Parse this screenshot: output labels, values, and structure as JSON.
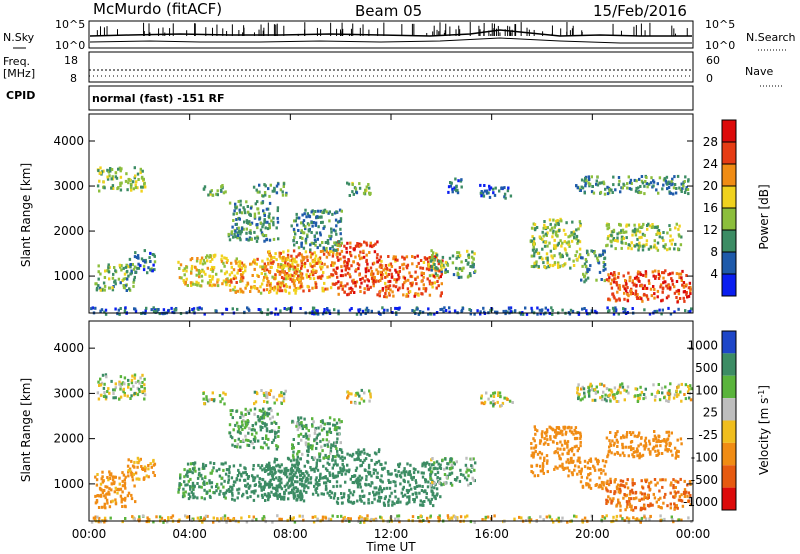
{
  "header": {
    "station": "McMurdo (fitACF)",
    "beam": "Beam 05",
    "date": "15/Feb/2016"
  },
  "top_panel_labels": {
    "nsky": "N.Sky",
    "nsky_ticks": [
      "10^5",
      "10^0"
    ],
    "nsearch": "N.Search",
    "nsearch_ticks": [
      "10^5",
      "10^0"
    ],
    "freq": "Freq.",
    "freq_unit": "[MHz]",
    "freq_ticks": [
      "18",
      "8"
    ],
    "nave": "Nave",
    "nave_ticks": [
      "60",
      "0"
    ],
    "cpid": "CPID",
    "cpid_value": "normal (fast) -151 RF"
  },
  "chart_data": [
    {
      "type": "heatmap",
      "parameter": "power",
      "ylabel": "Slant Range [km]",
      "xlabel": "",
      "ylim": [
        180,
        4600
      ],
      "yticks": [
        1000,
        2000,
        3000,
        4000
      ],
      "xticks": [
        "00:00",
        "04:00",
        "08:00",
        "12:00",
        "16:00",
        "20:00",
        "00:00"
      ],
      "colorbar": {
        "label": "Power [dB]",
        "range": [
          0,
          32
        ],
        "ticks": [
          4,
          8,
          12,
          16,
          20,
          24,
          28
        ],
        "colors": [
          "#0a1ef0",
          "#1e5aaa",
          "#3c8c64",
          "#8cbe3c",
          "#f0d21e",
          "#f08c14",
          "#e63c14",
          "#dc0a0a"
        ]
      },
      "regions": [
        {
          "t": [
            0.3,
            2.2
          ],
          "r": [
            2900,
            3450
          ],
          "v": 14
        },
        {
          "t": [
            4.5,
            5.4
          ],
          "r": [
            2800,
            3050
          ],
          "v": 12
        },
        {
          "t": [
            6.5,
            7.8
          ],
          "r": [
            2800,
            3100
          ],
          "v": 10
        },
        {
          "t": [
            10.2,
            11.2
          ],
          "r": [
            2800,
            3100
          ],
          "v": 12
        },
        {
          "t": [
            14.2,
            14.8
          ],
          "r": [
            2850,
            3200
          ],
          "v": 8
        },
        {
          "t": [
            15.5,
            16.8
          ],
          "r": [
            2750,
            3050
          ],
          "v": 6
        },
        {
          "t": [
            19.3,
            23.9
          ],
          "r": [
            2850,
            3250
          ],
          "v": 10
        },
        {
          "t": [
            0.0,
            23.9
          ],
          "r": [
            180,
            330
          ],
          "v": 6
        },
        {
          "t": [
            0.2,
            1.8
          ],
          "r": [
            700,
            1300
          ],
          "v": 12
        },
        {
          "t": [
            1.5,
            2.6
          ],
          "r": [
            1100,
            1600
          ],
          "v": 8
        },
        {
          "t": [
            3.5,
            5.5
          ],
          "r": [
            800,
            1500
          ],
          "v": 18
        },
        {
          "t": [
            5.5,
            8.5
          ],
          "r": [
            650,
            1450
          ],
          "v": 20
        },
        {
          "t": [
            7.0,
            9.8
          ],
          "r": [
            700,
            1600
          ],
          "v": 22
        },
        {
          "t": [
            9.8,
            11.5
          ],
          "r": [
            600,
            1800
          ],
          "v": 26
        },
        {
          "t": [
            11.5,
            14.0
          ],
          "r": [
            550,
            1500
          ],
          "v": 24
        },
        {
          "t": [
            13.5,
            15.3
          ],
          "r": [
            1000,
            1600
          ],
          "v": 12
        },
        {
          "t": [
            17.5,
            19.5
          ],
          "r": [
            1200,
            2300
          ],
          "v": 14
        },
        {
          "t": [
            19.5,
            20.5
          ],
          "r": [
            900,
            1600
          ],
          "v": 10
        },
        {
          "t": [
            20.5,
            23.9
          ],
          "r": [
            450,
            1150
          ],
          "v": 26
        },
        {
          "t": [
            20.5,
            23.5
          ],
          "r": [
            1600,
            2200
          ],
          "v": 14
        },
        {
          "t": [
            5.5,
            7.5
          ],
          "r": [
            1800,
            2700
          ],
          "v": 10
        },
        {
          "t": [
            8.0,
            10.0
          ],
          "r": [
            1600,
            2500
          ],
          "v": 9
        }
      ]
    },
    {
      "type": "heatmap",
      "parameter": "velocity",
      "ylabel": "Slant Range [km]",
      "xlabel": "Time UT",
      "ylim": [
        180,
        4600
      ],
      "yticks": [
        1000,
        2000,
        3000,
        4000
      ],
      "xticks": [
        "00:00",
        "04:00",
        "08:00",
        "12:00",
        "16:00",
        "20:00",
        "00:00"
      ],
      "colorbar": {
        "label": "Velocity [m s^-1]",
        "range": [
          -1000,
          1000
        ],
        "ticks": [
          "1000",
          "500",
          "100",
          "25",
          "-25",
          "-100",
          "-500",
          "-1000"
        ],
        "colors": [
          "#1e46c8",
          "#3c8c64",
          "#5ab43c",
          "#bebebe",
          "#f0be1e",
          "#f08c14",
          "#e65a10",
          "#dc0a0a"
        ]
      },
      "regions": [
        {
          "t": [
            0.3,
            2.2
          ],
          "r": [
            2900,
            3450
          ],
          "v": 25
        },
        {
          "t": [
            4.5,
            5.4
          ],
          "r": [
            2800,
            3050
          ],
          "v": 0
        },
        {
          "t": [
            6.5,
            7.8
          ],
          "r": [
            2800,
            3100
          ],
          "v": 0
        },
        {
          "t": [
            10.2,
            11.2
          ],
          "r": [
            2800,
            3100
          ],
          "v": 0
        },
        {
          "t": [
            15.5,
            16.8
          ],
          "r": [
            2750,
            3050
          ],
          "v": 0
        },
        {
          "t": [
            19.3,
            23.9
          ],
          "r": [
            2850,
            3250
          ],
          "v": 0
        },
        {
          "t": [
            0.0,
            23.9
          ],
          "r": [
            180,
            330
          ],
          "v": -60
        },
        {
          "t": [
            0.2,
            1.8
          ],
          "r": [
            500,
            1300
          ],
          "v": -200
        },
        {
          "t": [
            1.5,
            2.6
          ],
          "r": [
            1100,
            1600
          ],
          "v": -150
        },
        {
          "t": [
            3.5,
            5.5
          ],
          "r": [
            700,
            1500
          ],
          "v": 150
        },
        {
          "t": [
            5.5,
            8.5
          ],
          "r": [
            650,
            1450
          ],
          "v": 300
        },
        {
          "t": [
            7.0,
            9.8
          ],
          "r": [
            700,
            1600
          ],
          "v": 300
        },
        {
          "t": [
            9.8,
            11.5
          ],
          "r": [
            600,
            1800
          ],
          "v": 250
        },
        {
          "t": [
            11.5,
            14.0
          ],
          "r": [
            550,
            1500
          ],
          "v": 300
        },
        {
          "t": [
            13.5,
            15.3
          ],
          "r": [
            1000,
            1600
          ],
          "v": 80
        },
        {
          "t": [
            17.5,
            19.5
          ],
          "r": [
            1200,
            2300
          ],
          "v": -300
        },
        {
          "t": [
            19.5,
            20.5
          ],
          "r": [
            900,
            1600
          ],
          "v": -300
        },
        {
          "t": [
            20.5,
            23.9
          ],
          "r": [
            450,
            1150
          ],
          "v": -500
        },
        {
          "t": [
            20.5,
            23.5
          ],
          "r": [
            1600,
            2200
          ],
          "v": -250
        },
        {
          "t": [
            5.5,
            7.5
          ],
          "r": [
            1800,
            2700
          ],
          "v": 120
        },
        {
          "t": [
            8.0,
            10.0
          ],
          "r": [
            1600,
            2500
          ],
          "v": 100
        }
      ]
    }
  ]
}
